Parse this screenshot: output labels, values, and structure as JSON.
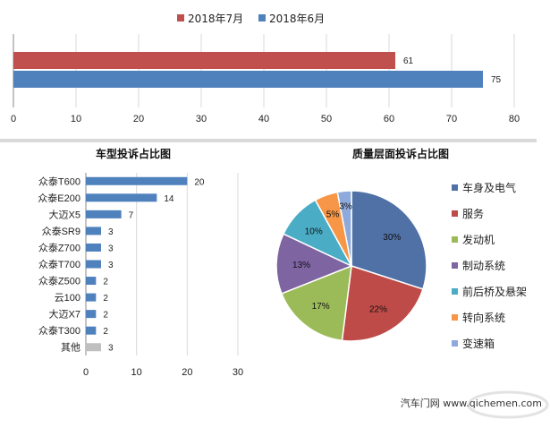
{
  "colors": {
    "jul": "#c0504d",
    "jun": "#4f81bd",
    "blue": "#4f81bd",
    "gray": "#bfbfbf",
    "pie": [
      "#4f71a6",
      "#be4b48",
      "#9bbb59",
      "#7f64a2",
      "#4bacc6",
      "#f79646",
      "#8ea9db"
    ]
  },
  "chart_data": [
    {
      "type": "bar",
      "orientation": "horizontal",
      "title": "",
      "series": [
        {
          "name": "2018年7月",
          "values": [
            61
          ]
        },
        {
          "name": "2018年6月",
          "values": [
            75
          ]
        }
      ],
      "xlim": [
        0,
        80
      ],
      "xticks": [
        "0",
        "10",
        "20",
        "30",
        "40",
        "50",
        "60",
        "70",
        "80"
      ],
      "legend": "top"
    },
    {
      "type": "bar",
      "orientation": "horizontal",
      "title": "车型投诉占比图",
      "categories": [
        "众泰T600",
        "众泰E200",
        "大迈X5",
        "众泰SR9",
        "众泰Z700",
        "众泰T700",
        "众泰Z500",
        "云100",
        "大迈X7",
        "众泰T300",
        "其他"
      ],
      "values": [
        20,
        14,
        7,
        3,
        3,
        3,
        2,
        2,
        2,
        2,
        3
      ],
      "xlim": [
        0,
        30
      ],
      "xticks": [
        "0",
        "10",
        "20",
        "30"
      ]
    },
    {
      "type": "pie",
      "title": "质量层面投诉占比图",
      "labels": [
        "车身及电气",
        "服务",
        "发动机",
        "制动系统",
        "前后桥及悬架",
        "转向系统",
        "变速箱"
      ],
      "values": [
        30,
        22,
        17,
        13,
        10,
        5,
        3
      ],
      "value_labels": [
        "30%",
        "22%",
        "17%",
        "13%",
        "10%",
        "5%",
        "3%"
      ],
      "legend": "right"
    }
  ],
  "watermark": {
    "text": "汽车门网 www.qichemen.com"
  }
}
